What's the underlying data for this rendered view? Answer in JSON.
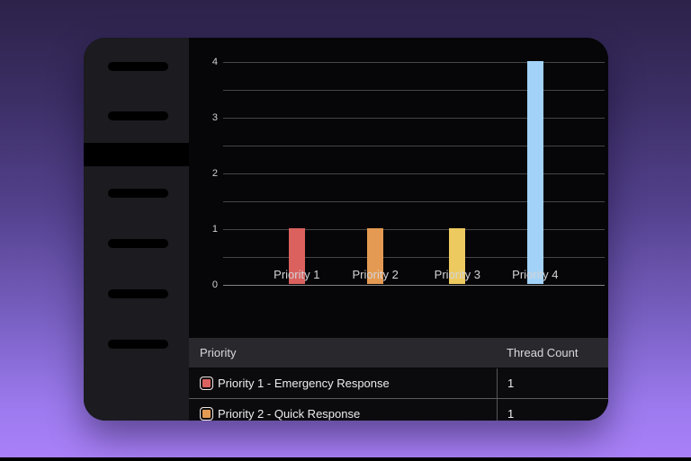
{
  "sidebar": {
    "skeleton_item_count": 6,
    "active_item_index": 2,
    "items": [
      {
        "type": "pill"
      },
      {
        "type": "pill"
      },
      {
        "type": "active"
      },
      {
        "type": "pill"
      },
      {
        "type": "pill"
      },
      {
        "type": "pill"
      },
      {
        "type": "pill"
      }
    ]
  },
  "chart_data": {
    "type": "bar",
    "title": "",
    "xlabel": "",
    "ylabel": "",
    "categories": [
      "Priority 1",
      "Priority 2",
      "Priority 3",
      "Priority 4"
    ],
    "values": [
      1,
      1,
      1,
      4
    ],
    "bar_colors": [
      "#da615e",
      "#e49a52",
      "#ecca60",
      "#a2d2f7"
    ],
    "ylim": [
      0,
      4
    ],
    "y_tick_labels": [
      "0",
      "1",
      "2",
      "3",
      "4"
    ],
    "gridline_interval": 0.5,
    "grid": true,
    "legend_position": "none"
  },
  "table": {
    "columns": [
      {
        "label": "Priority"
      },
      {
        "label": "Thread Count"
      }
    ],
    "rows": [
      {
        "swatch_color": "#da615e",
        "label": "Priority 1 - Emergency Response",
        "count": "1"
      },
      {
        "swatch_color": "#e49a52",
        "label": "Priority 2 - Quick Response",
        "count": "1"
      }
    ]
  },
  "colors": {
    "background_gradient_top": "#2c2249",
    "background_gradient_bottom": "#aa80f8",
    "window_background": "#060608",
    "sidebar_background": "#1b1b20",
    "table_header_background": "#29292d"
  }
}
